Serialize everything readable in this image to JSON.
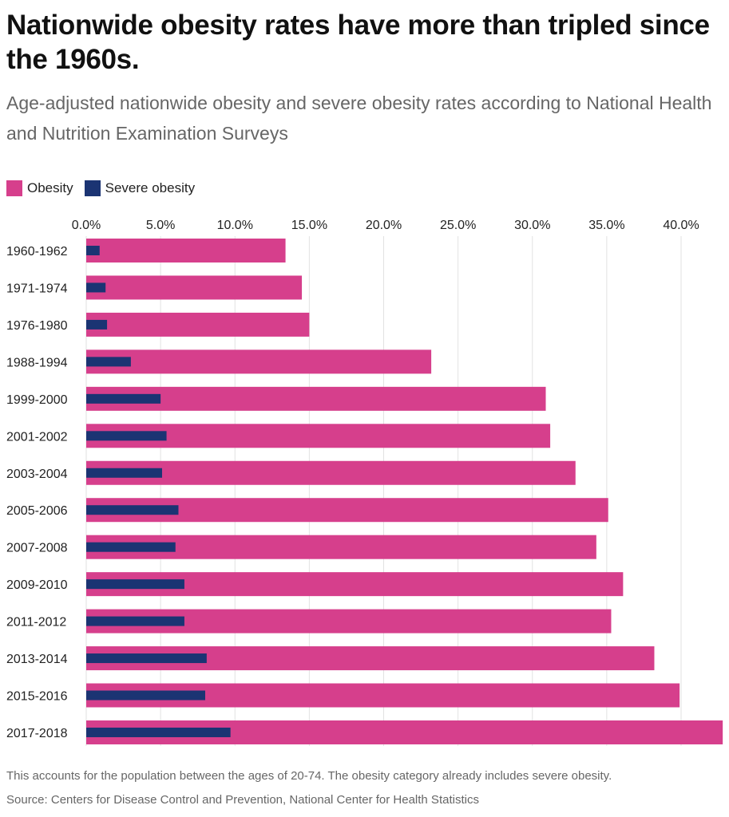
{
  "title": "Nationwide obesity rates have more than tripled since the 1960s.",
  "subtitle": "Age-adjusted nationwide obesity and severe obesity rates according to National Health and Nutrition Examination Surveys",
  "footnote": "This accounts for the population between the ages of 20-74. The obesity category already includes severe obesity.",
  "source": "Source: Centers for Disease Control and Prevention, National Center for Health Statistics",
  "chart_data": {
    "type": "bar",
    "orientation": "horizontal",
    "categories": [
      "1960-1962",
      "1971-1974",
      "1976-1980",
      "1988-1994",
      "1999-2000",
      "2001-2002",
      "2003-2004",
      "2005-2006",
      "2007-2008",
      "2009-2010",
      "2011-2012",
      "2013-2014",
      "2015-2016",
      "2017-2018"
    ],
    "series": [
      {
        "name": "Obesity",
        "color": "#d63f8c",
        "values": [
          13.4,
          14.5,
          15.0,
          23.2,
          30.9,
          31.2,
          32.9,
          35.1,
          34.3,
          36.1,
          35.3,
          38.2,
          39.9,
          42.8
        ]
      },
      {
        "name": "Severe obesity",
        "color": "#1b3473",
        "values": [
          0.9,
          1.3,
          1.4,
          3.0,
          5.0,
          5.4,
          5.1,
          6.2,
          6.0,
          6.6,
          6.6,
          8.1,
          8.0,
          9.7
        ]
      }
    ],
    "xlim": [
      0,
      42.8
    ],
    "xticks": [
      "0.0%",
      "5.0%",
      "10.0%",
      "15.0%",
      "20.0%",
      "25.0%",
      "30.0%",
      "35.0%",
      "40.0%"
    ],
    "xtick_values": [
      0,
      5,
      10,
      15,
      20,
      25,
      30,
      35,
      40
    ],
    "grid": true,
    "legend_position": "top-left",
    "overlap": true
  }
}
